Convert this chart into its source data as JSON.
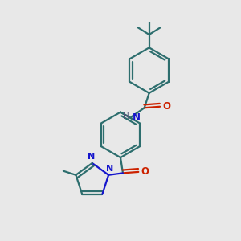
{
  "bg_color": "#e8e8e8",
  "bond_color": "#2d6e6e",
  "n_color": "#1515cc",
  "o_color": "#cc2200",
  "h_color": "#555577",
  "lw": 1.6,
  "dbo": 0.013,
  "figsize": [
    3.0,
    3.0
  ],
  "dpi": 100,
  "xlim": [
    0.0,
    1.0
  ],
  "ylim": [
    0.0,
    1.0
  ]
}
